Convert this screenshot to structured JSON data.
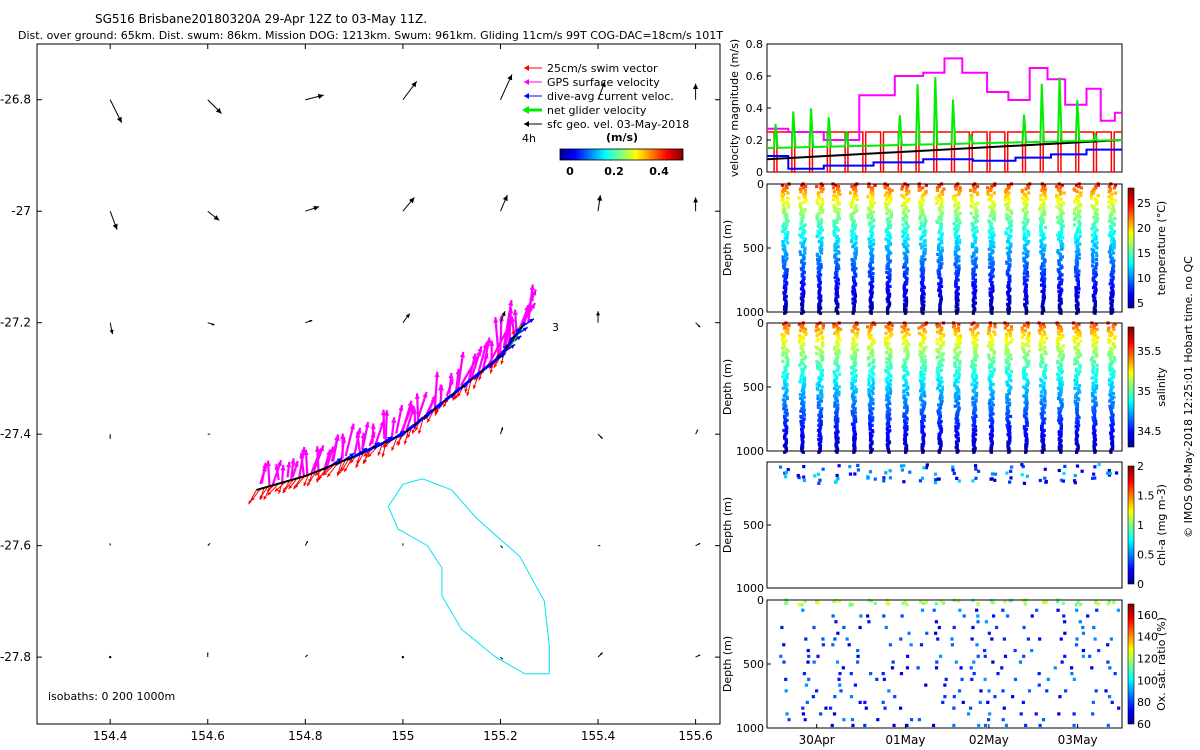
{
  "header": {
    "title_line1": "SG516 Brisbane20180320A 29-Apr 12Z to 03-May 11Z.",
    "title_line2": "Dist. over ground: 65km. Dist. swum: 86km. Mission DOG: 1213km. Swum: 961km. Gliding 11cm/s 99T COG-DAC=18cm/s 101T"
  },
  "side_credit": "© IMOS 09-May-2018 12:25:01 Hobart time. no QC",
  "colors": {
    "swim": "#ff0000",
    "gps": "#ff00ff",
    "dac": "#0000ff",
    "net": "#00ee00",
    "sfc": "#000000",
    "isobath": "#00e5ee"
  },
  "chart_data": [
    {
      "name": "map",
      "type": "scatter",
      "xlim": [
        154.25,
        155.65
      ],
      "ylim": [
        -27.92,
        -26.7
      ],
      "xticks": [
        "154.4",
        "154.6",
        "154.8",
        "155",
        "155.2",
        "155.4",
        "155.6"
      ],
      "yticks": [
        "-26.8",
        "-27",
        "-27.2",
        "-27.4",
        "-27.6",
        "-27.8"
      ],
      "legend": [
        {
          "label": "25cm/s swim vector",
          "color": "#ff0000"
        },
        {
          "label": "GPS surface velocity",
          "color": "#ff00ff"
        },
        {
          "label": "dive-avg current veloc.",
          "color": "#0000ff"
        },
        {
          "label": "net glider velocity",
          "color": "#00ee00"
        },
        {
          "label": "sfc geo. vel. 03-May-2018",
          "color": "#000000"
        }
      ],
      "scale_label": "4h",
      "colorbar": {
        "label": "(m/s)",
        "ticks": [
          "0",
          "0.2",
          "0.4"
        ],
        "range": [
          0,
          0.5
        ]
      },
      "isobaths_label": "isobaths: 0   200   1000m",
      "annotation": "3",
      "track": [
        [
          154.7,
          -27.5
        ],
        [
          154.8,
          -27.475
        ],
        [
          154.9,
          -27.44
        ],
        [
          155.0,
          -27.4
        ],
        [
          155.1,
          -27.33
        ],
        [
          155.2,
          -27.26
        ],
        [
          155.25,
          -27.2
        ]
      ],
      "isobath_1000": [
        [
          155.0,
          -27.49
        ],
        [
          154.97,
          -27.53
        ],
        [
          154.99,
          -27.57
        ],
        [
          155.05,
          -27.6
        ],
        [
          155.08,
          -27.64
        ],
        [
          155.08,
          -27.69
        ],
        [
          155.12,
          -27.75
        ],
        [
          155.19,
          -27.8
        ],
        [
          155.25,
          -27.83
        ],
        [
          155.3,
          -27.83
        ],
        [
          155.3,
          -27.78
        ],
        [
          155.29,
          -27.7
        ],
        [
          155.24,
          -27.62
        ],
        [
          155.15,
          -27.55
        ],
        [
          155.1,
          -27.5
        ],
        [
          155.04,
          -27.48
        ]
      ],
      "geo_vectors": [
        {
          "lon": 154.4,
          "lat": -26.8,
          "u": 0.05,
          "v": -0.1
        },
        {
          "lon": 154.6,
          "lat": -26.8,
          "u": 0.06,
          "v": -0.06
        },
        {
          "lon": 154.8,
          "lat": -26.8,
          "u": 0.08,
          "v": 0.02
        },
        {
          "lon": 155.0,
          "lat": -26.8,
          "u": 0.06,
          "v": 0.08
        },
        {
          "lon": 155.2,
          "lat": -26.8,
          "u": 0.05,
          "v": 0.11
        },
        {
          "lon": 155.4,
          "lat": -26.8,
          "u": 0.03,
          "v": 0.08
        },
        {
          "lon": 155.6,
          "lat": -26.8,
          "u": 0.0,
          "v": 0.07
        },
        {
          "lon": 154.4,
          "lat": -27.0,
          "u": 0.03,
          "v": -0.08
        },
        {
          "lon": 154.6,
          "lat": -27.0,
          "u": 0.05,
          "v": -0.04
        },
        {
          "lon": 154.8,
          "lat": -27.0,
          "u": 0.06,
          "v": 0.02
        },
        {
          "lon": 155.0,
          "lat": -27.0,
          "u": 0.05,
          "v": 0.06
        },
        {
          "lon": 155.2,
          "lat": -27.0,
          "u": 0.03,
          "v": 0.07
        },
        {
          "lon": 155.4,
          "lat": -27.0,
          "u": 0.01,
          "v": 0.07
        },
        {
          "lon": 155.6,
          "lat": -27.0,
          "u": 0.0,
          "v": 0.06
        },
        {
          "lon": 154.4,
          "lat": -27.2,
          "u": 0.01,
          "v": -0.05
        },
        {
          "lon": 154.6,
          "lat": -27.2,
          "u": 0.03,
          "v": -0.01
        },
        {
          "lon": 154.8,
          "lat": -27.2,
          "u": 0.03,
          "v": 0.01
        },
        {
          "lon": 155.0,
          "lat": -27.2,
          "u": 0.03,
          "v": 0.04
        },
        {
          "lon": 155.2,
          "lat": -27.2,
          "u": 0.02,
          "v": 0.05
        },
        {
          "lon": 155.4,
          "lat": -27.2,
          "u": 0.0,
          "v": 0.05
        },
        {
          "lon": 155.6,
          "lat": -27.2,
          "u": 0.02,
          "v": -0.02
        },
        {
          "lon": 154.4,
          "lat": -27.4,
          "u": 0.0,
          "v": -0.02
        },
        {
          "lon": 154.6,
          "lat": -27.4,
          "u": 0.01,
          "v": 0.0
        },
        {
          "lon": 155.2,
          "lat": -27.4,
          "u": 0.01,
          "v": 0.03
        },
        {
          "lon": 155.4,
          "lat": -27.4,
          "u": 0.02,
          "v": -0.02
        },
        {
          "lon": 155.6,
          "lat": -27.4,
          "u": 0.01,
          "v": 0.02
        },
        {
          "lon": 154.4,
          "lat": -27.6,
          "u": 0.0,
          "v": 0.01
        },
        {
          "lon": 154.6,
          "lat": -27.6,
          "u": 0.01,
          "v": 0.01
        },
        {
          "lon": 154.8,
          "lat": -27.6,
          "u": 0.01,
          "v": 0.02
        },
        {
          "lon": 155.0,
          "lat": -27.6,
          "u": 0.0,
          "v": 0.01
        },
        {
          "lon": 155.2,
          "lat": -27.6,
          "u": 0.01,
          "v": -0.01
        },
        {
          "lon": 155.4,
          "lat": -27.6,
          "u": 0.01,
          "v": 0.0
        },
        {
          "lon": 155.6,
          "lat": -27.6,
          "u": 0.02,
          "v": 0.01
        },
        {
          "lon": 154.4,
          "lat": -27.8,
          "u": 0.0,
          "v": 0.0
        },
        {
          "lon": 154.6,
          "lat": -27.8,
          "u": 0.0,
          "v": 0.02
        },
        {
          "lon": 154.8,
          "lat": -27.8,
          "u": 0.01,
          "v": 0.01
        },
        {
          "lon": 155.0,
          "lat": -27.8,
          "u": 0.0,
          "v": 0.0
        },
        {
          "lon": 155.2,
          "lat": -27.8,
          "u": 0.01,
          "v": -0.01
        },
        {
          "lon": 155.4,
          "lat": -27.8,
          "u": 0.02,
          "v": 0.02
        },
        {
          "lon": 155.6,
          "lat": -27.8,
          "u": 0.02,
          "v": 0.01
        }
      ]
    },
    {
      "name": "velocity",
      "type": "line",
      "ylabel": "velocity magnitude (m/s)",
      "ylim": [
        0,
        0.8
      ],
      "yticks": [
        "0",
        "0.2",
        "0.4",
        "0.6",
        "0.8"
      ],
      "xlim": [
        0,
        1
      ],
      "series": [
        {
          "color": "#ff00ff",
          "x": [
            0,
            0.06,
            0.06,
            0.16,
            0.16,
            0.26,
            0.26,
            0.36,
            0.36,
            0.44,
            0.44,
            0.5,
            0.5,
            0.55,
            0.55,
            0.62,
            0.62,
            0.68,
            0.68,
            0.74,
            0.74,
            0.79,
            0.79,
            0.84,
            0.84,
            0.9,
            0.9,
            0.94,
            0.94,
            0.98,
            0.98,
            1
          ],
          "values": [
            0.27,
            0.27,
            0.25,
            0.25,
            0.2,
            0.2,
            0.48,
            0.48,
            0.6,
            0.6,
            0.62,
            0.62,
            0.71,
            0.71,
            0.62,
            0.62,
            0.5,
            0.5,
            0.45,
            0.45,
            0.65,
            0.65,
            0.58,
            0.58,
            0.42,
            0.42,
            0.52,
            0.52,
            0.32,
            0.32,
            0.37,
            0.37
          ]
        },
        {
          "color": "#0000ff",
          "x": [
            0,
            0.06,
            0.06,
            0.16,
            0.16,
            0.3,
            0.3,
            0.44,
            0.44,
            0.58,
            0.58,
            0.7,
            0.7,
            0.8,
            0.8,
            0.9,
            0.9,
            1
          ],
          "values": [
            0.1,
            0.1,
            0.02,
            0.02,
            0.04,
            0.04,
            0.06,
            0.06,
            0.08,
            0.08,
            0.07,
            0.07,
            0.09,
            0.09,
            0.11,
            0.11,
            0.14,
            0.14
          ]
        },
        {
          "color": "#000000",
          "x": [
            0,
            1
          ],
          "values": [
            0.08,
            0.2
          ]
        },
        {
          "color": "#ff0000",
          "x": [
            0,
            1
          ],
          "values": [
            0.25,
            0.25
          ]
        }
      ]
    },
    {
      "name": "temperature",
      "type": "scatter",
      "ylabel": "Depth (m)",
      "ylim": [
        1000,
        0
      ],
      "yticks": [
        "0",
        "500",
        "1000"
      ],
      "colorbar": {
        "label": "temperature (°C)",
        "ticks": [
          "5",
          "10",
          "15",
          "20",
          "25"
        ],
        "range": [
          4,
          28
        ]
      },
      "dives": 20,
      "surface_value": 26,
      "deep_value": 5
    },
    {
      "name": "salinity",
      "type": "scatter",
      "ylabel": "Depth (m)",
      "ylim": [
        1000,
        0
      ],
      "yticks": [
        "0",
        "500",
        "1000"
      ],
      "colorbar": {
        "label": "salinity",
        "ticks": [
          "34.5",
          "35",
          "35.5"
        ],
        "range": [
          34.3,
          35.8
        ]
      },
      "dives": 20,
      "surface_value": 35.6,
      "deep_value": 34.4
    },
    {
      "name": "chlorophyll",
      "type": "scatter",
      "ylabel": "Depth (m)",
      "ylim": [
        1000,
        0
      ],
      "yticks": [
        "500",
        "1000"
      ],
      "colorbar": {
        "label": "chl-a (mg m-3)",
        "ticks": [
          "0",
          "0.5",
          "1",
          "1.5",
          "2"
        ],
        "range": [
          0,
          2
        ]
      },
      "dives": 20
    },
    {
      "name": "oxygen",
      "type": "scatter",
      "ylabel": "Depth (m)",
      "ylim": [
        1000,
        0
      ],
      "yticks": [
        "0",
        "500",
        "1000"
      ],
      "xticks": [
        "30Apr",
        "01May",
        "02May",
        "03May"
      ],
      "colorbar": {
        "label": "Ox. sat. ratio (%)",
        "ticks": [
          "60",
          "80",
          "100",
          "120",
          "140",
          "160"
        ],
        "range": [
          60,
          170
        ]
      },
      "dives": 20
    }
  ]
}
